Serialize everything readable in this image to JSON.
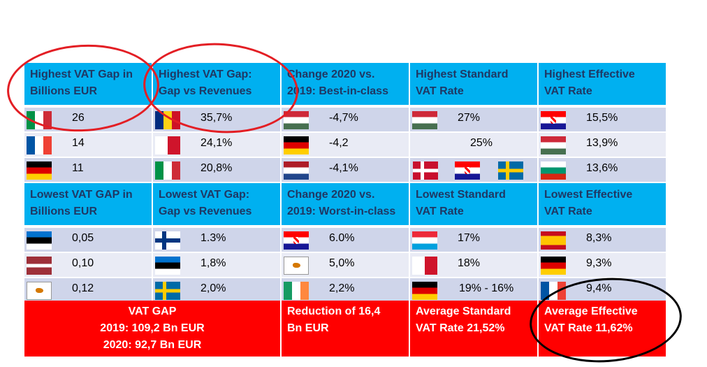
{
  "colors": {
    "header": "#00b0f0",
    "header_text": "#1f3864",
    "row_a": "#cfd5ea",
    "row_b": "#e9ebf5",
    "footer": "#ff0000",
    "circle_red": "#e31e24",
    "circle_black": "#000000"
  },
  "top_headers": [
    {
      "line1": "Highest VAT Gap in",
      "line2": "Billions EUR"
    },
    {
      "line1": "Highest VAT Gap:",
      "line2": "Gap vs Revenues"
    },
    {
      "line1": "Change 2020 vs.",
      "line2": "2019: Best-in-class"
    },
    {
      "line1": "Highest Standard",
      "line2": "VAT Rate"
    },
    {
      "line1": "Highest Effective",
      "line2": "VAT Rate"
    }
  ],
  "top_rows": [
    [
      {
        "flag": "italy-flag",
        "value": "26"
      },
      {
        "flag": "romania-flag",
        "value": "35,7%"
      },
      {
        "flag": "hungary-flag",
        "value": "-4,7%"
      },
      {
        "flag": "hungary-flag",
        "value": "27%"
      },
      {
        "flag": "croatia-flag",
        "value": "15,5%"
      }
    ],
    [
      {
        "flag": "france-flag",
        "value": "14"
      },
      {
        "flag": "malta-flag",
        "value": "24,1%"
      },
      {
        "flag": "germany-flag",
        "value": "-4,2"
      },
      {
        "flag": "",
        "value": "25%"
      },
      {
        "flag": "hungary-flag",
        "value": "13,9%"
      }
    ],
    [
      {
        "flag": "germany-flag",
        "value": "11"
      },
      {
        "flag": "italy-flag",
        "value": "20,8%"
      },
      {
        "flag": "netherlands-flag",
        "value": "-4,1%"
      },
      {
        "flag": "denmark-croatia-sweden-flags",
        "value": ""
      },
      {
        "flag": "bulgaria-flag",
        "value": "13,6%"
      }
    ]
  ],
  "bottom_headers": [
    {
      "line1": "Lowest VAT GAP in",
      "line2": "Billions EUR"
    },
    {
      "line1": "Lowest VAT Gap:",
      "line2": "Gap vs Revenues"
    },
    {
      "line1": "Change 2020 vs.",
      "line2": "2019: Worst-in-class"
    },
    {
      "line1": "Lowest Standard",
      "line2": "VAT Rate"
    },
    {
      "line1": "Lowest Effective",
      "line2": "VAT Rate"
    }
  ],
  "bottom_rows": [
    [
      {
        "flag": "estonia-flag",
        "value": "0,05"
      },
      {
        "flag": "finland-flag",
        "value": "1.3%"
      },
      {
        "flag": "croatia-flag",
        "value": "6.0%"
      },
      {
        "flag": "luxembourg-flag",
        "value": "17%"
      },
      {
        "flag": "spain-flag",
        "value": "8,3%"
      }
    ],
    [
      {
        "flag": "latvia-flag",
        "value": "0,10"
      },
      {
        "flag": "estonia-flag",
        "value": "1,8%"
      },
      {
        "flag": "cyprus-flag",
        "value": "5,0%"
      },
      {
        "flag": "malta-flag",
        "value": "18%"
      },
      {
        "flag": "germany-flag",
        "value": "9,3%"
      }
    ],
    [
      {
        "flag": "cyprus-flag",
        "value": "0,12"
      },
      {
        "flag": "sweden-flag",
        "value": "2,0%"
      },
      {
        "flag": "ireland-flag",
        "value": "2,2%"
      },
      {
        "flag": "germany-flag",
        "value": "19% - 16%"
      },
      {
        "flag": "france-flag",
        "value": "9,4%"
      }
    ]
  ],
  "footer": {
    "gap_line1": "VAT GAP",
    "gap_line2": "2019: 109,2 Bn EUR",
    "gap_line3": "2020: 92,7 Bn EUR",
    "reduction_line1": "Reduction of 16,4",
    "reduction_line2": "Bn EUR",
    "avg_std_line1": "Average Standard",
    "avg_std_line2": "VAT Rate 21,52%",
    "avg_eff_line1": "Average Effective",
    "avg_eff_line2": "VAT Rate 11,62%"
  }
}
